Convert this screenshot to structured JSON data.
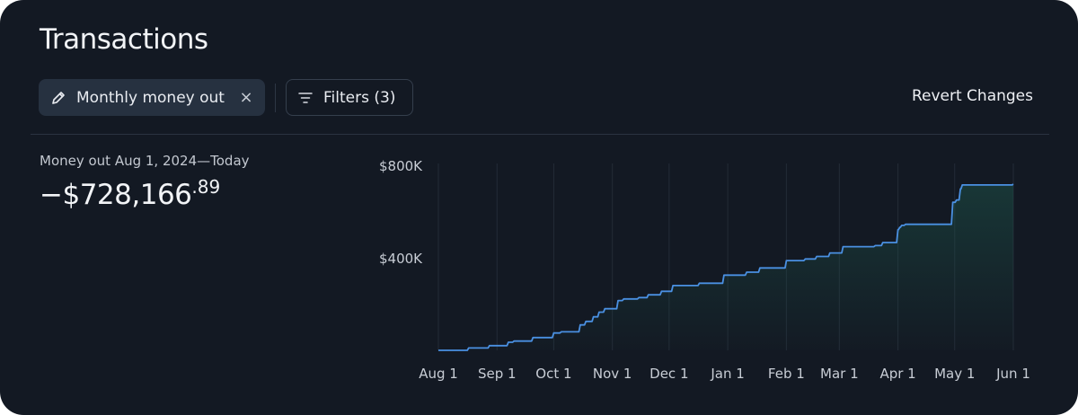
{
  "header": {
    "title": "Transactions"
  },
  "toolbar": {
    "view_chip_label": "Monthly money out",
    "view_chip_close": "×",
    "filter_label": "Filters (3)",
    "revert_label": "Revert Changes"
  },
  "summary": {
    "label": "Money out Aug 1, 2024—Today",
    "value_main": "−$728,166",
    "value_cents": ".89"
  },
  "chart_data": {
    "type": "area",
    "title": "",
    "xlabel": "",
    "ylabel": "",
    "y_ticks": [
      {
        "value": 400000,
        "label": "$400K"
      },
      {
        "value": 800000,
        "label": "$800K"
      }
    ],
    "x_ticks": [
      "Aug 1",
      "Sep 1",
      "Oct 1",
      "Nov 1",
      "Dec 1",
      "Jan 1",
      "Feb 1",
      "Mar 1",
      "Apr 1",
      "May 1",
      "Jun 1"
    ],
    "ylim": [
      0,
      800000
    ],
    "grid": "vertical",
    "line_color": "#4a90e2",
    "fill_color": "#1e5b4e",
    "series": [
      {
        "x": [
          "2024-08-01",
          "2024-08-17",
          "2024-08-28",
          "2024-09-07",
          "2024-09-10",
          "2024-09-20",
          "2024-10-01",
          "2024-10-05",
          "2024-10-15",
          "2024-10-18",
          "2024-10-22",
          "2024-10-25",
          "2024-10-28",
          "2024-11-04",
          "2024-11-07",
          "2024-11-15",
          "2024-11-20",
          "2024-11-27",
          "2024-12-03",
          "2024-12-17",
          "2024-12-30",
          "2025-01-11",
          "2025-01-18",
          "2025-02-01",
          "2025-02-11",
          "2025-02-17",
          "2025-02-24",
          "2025-03-03",
          "2025-03-20",
          "2025-03-24",
          "2025-04-01",
          "2025-04-02",
          "2025-04-03",
          "2025-04-05",
          "2025-04-30",
          "2025-05-02",
          "2025-05-04",
          "2025-05-05",
          "2025-06-01"
        ],
        "values": [
          0,
          10000,
          20000,
          35000,
          40000,
          55000,
          75000,
          80000,
          110000,
          125000,
          145000,
          165000,
          180000,
          215000,
          222000,
          228000,
          240000,
          255000,
          280000,
          290000,
          325000,
          338000,
          356000,
          388000,
          395000,
          406000,
          421000,
          448000,
          453000,
          466000,
          522000,
          532000,
          540000,
          545000,
          640000,
          650000,
          698000,
          715000,
          718000
        ]
      }
    ]
  }
}
